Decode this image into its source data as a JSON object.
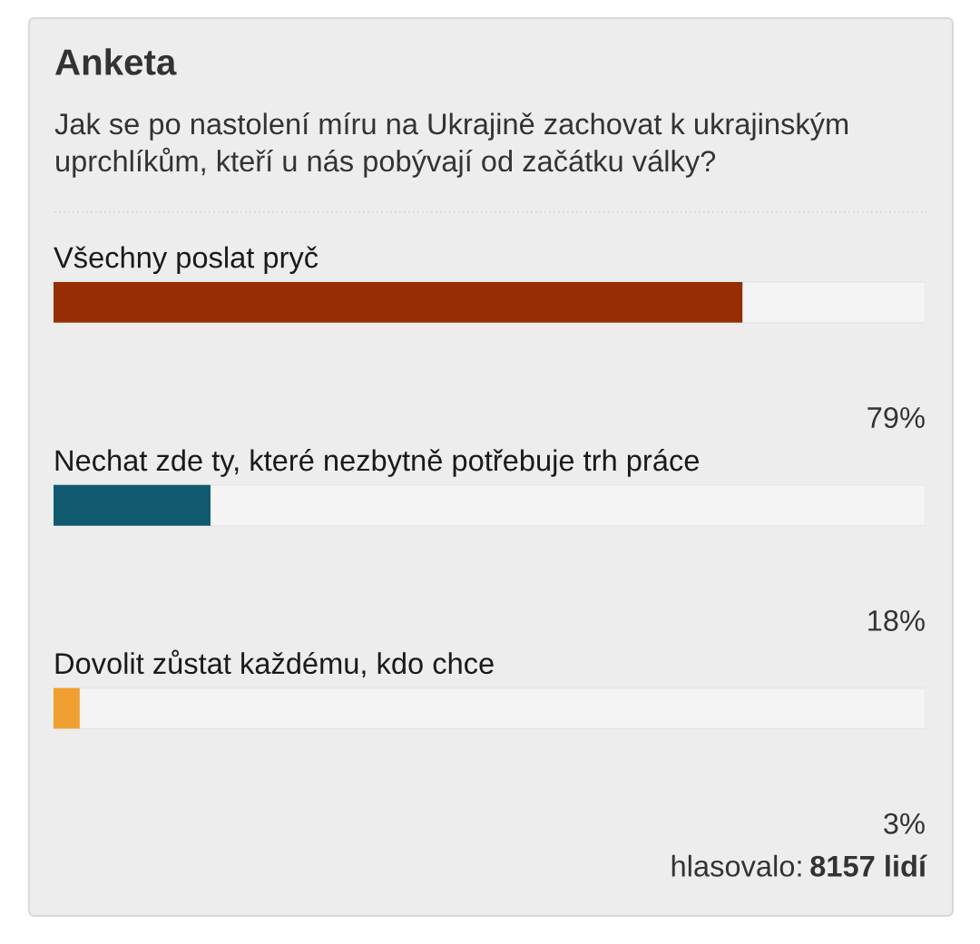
{
  "chart_data": {
    "type": "bar",
    "orientation": "horizontal",
    "title": "Anketa",
    "subtitle": "Jak se po nastolení míru na Ukrajině zachovat k ukrajinským uprchlíkům, kteří u nás pobývají od začátku války?",
    "categories": [
      "Všechny poslat pryč",
      "Nechat zde ty, které nezbytně potřebuje trh práce",
      "Dovolit zůstat každému, kdo chce"
    ],
    "values": [
      79,
      18,
      3
    ],
    "colors": [
      "#962d03",
      "#0f5a6e",
      "#f0a030"
    ],
    "value_labels": [
      "79%",
      "18%",
      "3%"
    ],
    "xlim": [
      0,
      100
    ],
    "tick_labels": false,
    "annotations": [
      "hlasovalo:",
      "8157 lidí"
    ]
  }
}
